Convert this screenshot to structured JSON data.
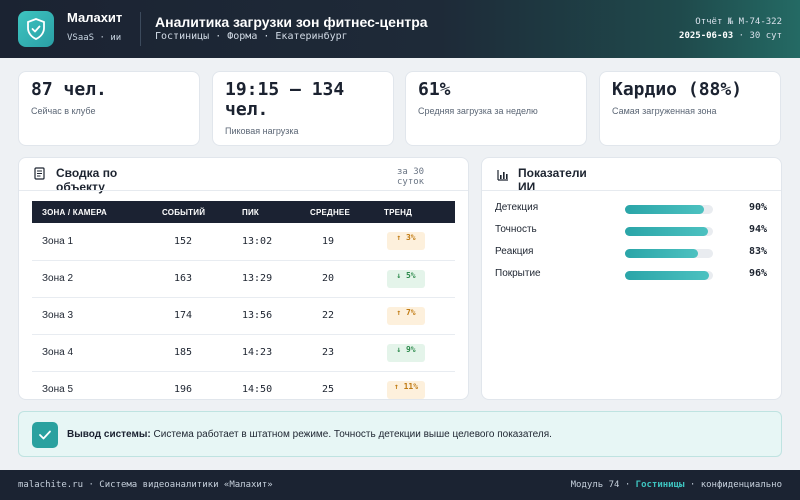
{
  "header": {
    "brand_name": "Малахит",
    "brand_sub": "VSaaS · ии",
    "title": "Аналитика загрузки зон фитнес-центра",
    "subtitle": "Гостиницы · Форма · Екатеринбург",
    "report_id": "Отчёт № М-74-322",
    "date": "2025-06-03",
    "period": "· 30 сут",
    "logo_icon": "shield-check-icon"
  },
  "kpis": [
    {
      "value": "87 чел.",
      "label": "Сейчас в клубе"
    },
    {
      "value": "19:15 — 134 чел.",
      "label": "Пиковая нагрузка"
    },
    {
      "value": "61%",
      "label": "Средняя загрузка за неделю"
    },
    {
      "value": "Кардио (88%)",
      "label": "Самая загруженная зона"
    }
  ],
  "summary": {
    "title": "Сводка по объекту",
    "meta": "за 30 суток",
    "icon": "document-icon",
    "columns": [
      "ЗОНА / КАМЕРА",
      "СОБЫТИЙ",
      "ПИК",
      "СРЕДНЕЕ",
      "ТРЕНД"
    ],
    "rows": [
      {
        "zone": "Зона 1",
        "events": "152",
        "peak": "13:02",
        "avg": "19",
        "trend": "↑ 3%",
        "trend_dir": "up"
      },
      {
        "zone": "Зона 2",
        "events": "163",
        "peak": "13:29",
        "avg": "20",
        "trend": "↓ 5%",
        "trend_dir": "down"
      },
      {
        "zone": "Зона 3",
        "events": "174",
        "peak": "13:56",
        "avg": "22",
        "trend": "↑ 7%",
        "trend_dir": "up"
      },
      {
        "zone": "Зона 4",
        "events": "185",
        "peak": "14:23",
        "avg": "23",
        "trend": "↓ 9%",
        "trend_dir": "down"
      },
      {
        "zone": "Зона 5",
        "events": "196",
        "peak": "14:50",
        "avg": "25",
        "trend": "↑ 11%",
        "trend_dir": "up"
      }
    ]
  },
  "ai_metrics": {
    "title": "Показатели ИИ",
    "icon": "bar-chart-icon",
    "items": [
      {
        "label": "Детекция",
        "value": "90%",
        "fraction": 0.9
      },
      {
        "label": "Точность",
        "value": "94%",
        "fraction": 0.94
      },
      {
        "label": "Реакция",
        "value": "83%",
        "fraction": 0.83
      },
      {
        "label": "Покрытие",
        "value": "96%",
        "fraction": 0.96
      }
    ]
  },
  "conclusion": {
    "label": "Вывод системы:",
    "text": "Система работает в штатном режиме. Точность детекции выше целевого показателя.",
    "icon": "check-icon"
  },
  "footer": {
    "left": "malachite.ru · Система видеоаналитики «Малахит»",
    "module": "Модуль 74 ·",
    "segment": "Гостиницы",
    "conf": "· конфиденциально"
  },
  "colors": {
    "accent": "#2aa5a8",
    "dark": "#1b2232",
    "trend_up": "#c07a12",
    "trend_down": "#2d8a4c"
  }
}
